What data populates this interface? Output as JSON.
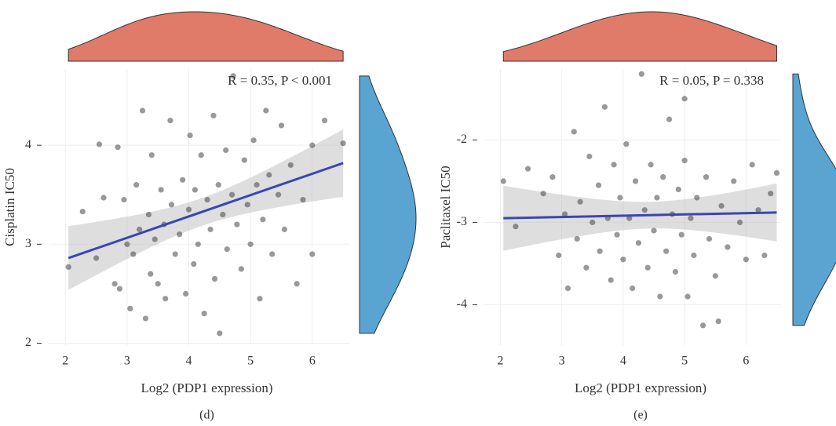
{
  "chart_data": [
    {
      "type": "scatter",
      "panel_label": "(d)",
      "x_label": "Log2 (PDP1 expression)",
      "y_label": "Cisplatin IC50",
      "annotation": "R = 0.35, P < 0.001",
      "color": "#333333",
      "grid": true,
      "xlim": [
        1.73,
        6.6
      ],
      "ylim": [
        1.98,
        4.77
      ],
      "xticks": [
        2,
        3,
        4,
        5,
        6
      ],
      "yticks": [
        2,
        3,
        4
      ],
      "x": [
        2.05,
        2.28,
        2.5,
        2.55,
        2.62,
        2.8,
        2.85,
        2.88,
        2.95,
        3.0,
        3.05,
        3.1,
        3.15,
        3.2,
        3.25,
        3.3,
        3.35,
        3.38,
        3.4,
        3.45,
        3.5,
        3.55,
        3.6,
        3.62,
        3.7,
        3.72,
        3.78,
        3.85,
        3.9,
        3.95,
        4.0,
        4.02,
        4.08,
        4.1,
        4.15,
        4.2,
        4.25,
        4.3,
        4.35,
        4.4,
        4.42,
        4.48,
        4.5,
        4.55,
        4.6,
        4.62,
        4.7,
        4.72,
        4.78,
        4.85,
        4.9,
        4.95,
        5.0,
        5.05,
        5.1,
        5.15,
        5.2,
        5.25,
        5.3,
        5.35,
        5.45,
        5.5,
        5.55,
        5.65,
        5.75,
        5.85,
        6.0,
        6.0,
        6.2,
        6.5
      ],
      "y": [
        2.77,
        3.33,
        2.86,
        4.01,
        3.47,
        2.6,
        3.98,
        2.55,
        3.45,
        3.0,
        2.35,
        2.9,
        3.6,
        3.15,
        4.35,
        2.25,
        3.3,
        2.7,
        3.9,
        3.05,
        2.6,
        3.55,
        3.2,
        2.45,
        4.25,
        3.4,
        2.9,
        3.1,
        3.65,
        2.5,
        3.35,
        4.1,
        2.8,
        3.55,
        3.0,
        3.9,
        2.3,
        3.45,
        3.15,
        4.3,
        2.65,
        3.6,
        2.1,
        3.3,
        3.95,
        2.95,
        3.5,
        4.7,
        3.2,
        2.75,
        3.85,
        3.4,
        3.0,
        4.05,
        3.6,
        2.45,
        3.25,
        4.35,
        3.7,
        2.9,
        3.5,
        4.2,
        3.15,
        3.8,
        2.6,
        3.45,
        4.0,
        2.9,
        4.25,
        4.02
      ],
      "fit": {
        "x": [
          2.05,
          6.5
        ],
        "y": [
          2.86,
          3.82
        ],
        "color": "#3b45b5"
      },
      "marginal_colors": {
        "top": "#e07b6a",
        "right": "#5aa4d2"
      }
    },
    {
      "type": "scatter",
      "panel_label": "(e)",
      "x_label": "Log2 (PDP1 expression)",
      "y_label": "Paclitaxel IC50",
      "annotation": "R = 0.05, P = 0.338",
      "color": "#333333",
      "grid": true,
      "xlim": [
        1.74,
        6.57
      ],
      "ylim": [
        -4.49,
        -1.14
      ],
      "xticks": [
        2,
        3,
        4,
        5,
        6
      ],
      "yticks": [
        -4,
        -3,
        -2
      ],
      "x": [
        2.05,
        2.25,
        2.45,
        2.7,
        2.85,
        2.95,
        3.05,
        3.1,
        3.2,
        3.25,
        3.3,
        3.4,
        3.45,
        3.5,
        3.6,
        3.62,
        3.7,
        3.75,
        3.8,
        3.85,
        3.9,
        3.95,
        4.0,
        4.05,
        4.1,
        4.15,
        4.2,
        4.25,
        4.3,
        4.35,
        4.4,
        4.45,
        4.5,
        4.55,
        4.6,
        4.65,
        4.7,
        4.75,
        4.8,
        4.85,
        4.9,
        4.95,
        5.0,
        5.0,
        5.05,
        5.1,
        5.15,
        5.2,
        5.3,
        5.35,
        5.4,
        5.5,
        5.55,
        5.6,
        5.7,
        5.8,
        5.9,
        6.0,
        6.1,
        6.2,
        6.3,
        6.4,
        6.5
      ],
      "y": [
        -2.5,
        -3.05,
        -2.35,
        -2.65,
        -2.45,
        -3.4,
        -2.9,
        -3.8,
        -1.9,
        -3.2,
        -2.75,
        -3.55,
        -2.2,
        -3.0,
        -2.55,
        -3.35,
        -1.6,
        -2.95,
        -3.7,
        -2.3,
        -3.15,
        -2.7,
        -3.45,
        -2.05,
        -2.95,
        -3.8,
        -2.5,
        -3.25,
        -1.2,
        -2.85,
        -3.55,
        -2.3,
        -3.1,
        -2.7,
        -3.9,
        -2.45,
        -3.35,
        -1.75,
        -2.9,
        -3.6,
        -2.6,
        -3.15,
        -1.5,
        -2.25,
        -3.9,
        -2.95,
        -3.4,
        -2.7,
        -4.25,
        -2.45,
        -3.2,
        -3.65,
        -4.2,
        -2.8,
        -3.3,
        -2.5,
        -3.0,
        -3.45,
        -2.3,
        -2.85,
        -3.4,
        -2.65,
        -2.4
      ],
      "fit": {
        "x": [
          2.05,
          6.5
        ],
        "y": [
          -2.95,
          -2.88
        ],
        "color": "#3b45b5"
      },
      "marginal_colors": {
        "top": "#e07b6a",
        "right": "#5aa4d2"
      }
    }
  ]
}
